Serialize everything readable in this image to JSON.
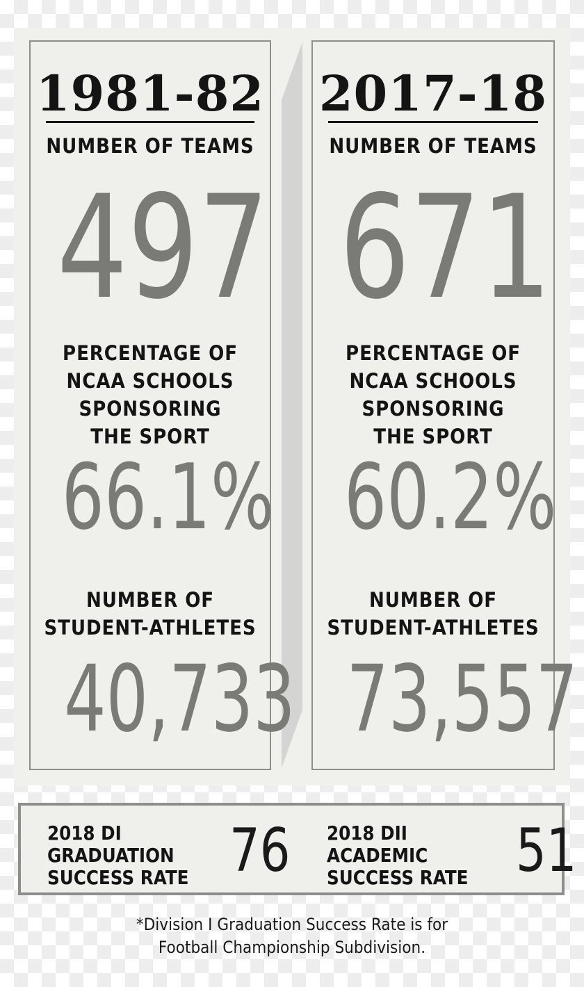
{
  "left_panel": {
    "year": "1981-82",
    "teams_label": "NUMBER OF TEAMS",
    "teams_value": "497",
    "percentage_label": [
      "PERCENTAGE OF",
      "NCAA SCHOOLS",
      "SPONSORING",
      "THE SPORT"
    ],
    "percentage_value": "66.1%",
    "athletes_label": [
      "NUMBER OF",
      "STUDENT-ATHLETES"
    ],
    "athletes_value": "40,733"
  },
  "right_panel": {
    "year": "2017-18",
    "teams_label": "NUMBER OF TEAMS",
    "teams_value": "671",
    "percentage_label": [
      "PERCENTAGE OF",
      "NCAA SCHOOLS",
      "SPONSORING",
      "THE SPORT"
    ],
    "percentage_value": "60.2%",
    "athletes_label": [
      "NUMBER OF",
      "STUDENT-ATHLETES"
    ],
    "athletes_value": "73,557"
  },
  "rates": {
    "di": {
      "label": [
        "2018 DI",
        "GRADUATION",
        "SUCCESS RATE"
      ],
      "value": "76"
    },
    "dii": {
      "label": [
        "2018 DII",
        "ACADEMIC",
        "SUCCESS RATE"
      ],
      "value": "51"
    }
  },
  "footnote": [
    "*Division I Graduation Success Rate is for",
    "Football Championship Subdivision."
  ],
  "colors": {
    "panel_bg": "#efefeb",
    "border": "#8e8e8c",
    "heading_text": "#141414",
    "value_text": "#7a7a76"
  }
}
